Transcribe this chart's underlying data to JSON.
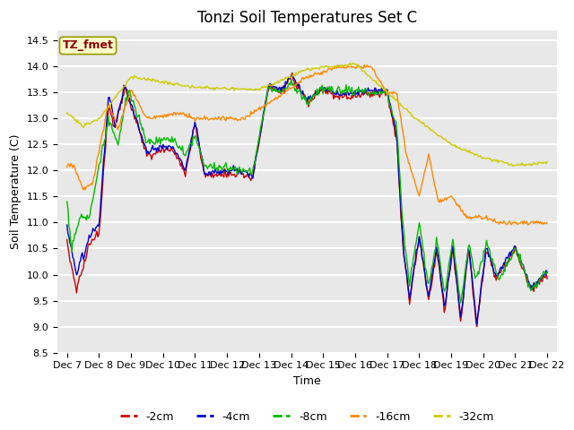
{
  "title": "Tonzi Soil Temperatures Set C",
  "xlabel": "Time",
  "ylabel": "Soil Temperature (C)",
  "ylim": [
    8.5,
    14.7
  ],
  "background_color": "#e8e8e8",
  "grid_color": "white",
  "legend_labels": [
    "-2cm",
    "-4cm",
    "-8cm",
    "-16cm",
    "-32cm"
  ],
  "legend_colors": [
    "#cc0000",
    "#0000cc",
    "#00bb00",
    "#ff8800",
    "#cccc00"
  ],
  "xtick_labels": [
    "Dec 7",
    "Dec 8",
    "Dec 9",
    "Dec 10",
    "Dec 11",
    "Dec 12",
    "Dec 13",
    "Dec 14",
    "Dec 15",
    "Dec 16",
    "Dec 17",
    "Dec 18",
    "Dec 19",
    "Dec 20",
    "Dec 21",
    "Dec 22"
  ],
  "annotation_text": "TZ_fmet",
  "annotation_bg": "#ffffcc",
  "annotation_border": "#999900",
  "annotation_text_color": "#880000",
  "title_fontsize": 12,
  "tick_fontsize": 8,
  "ylabel_fontsize": 9,
  "xlabel_fontsize": 9
}
